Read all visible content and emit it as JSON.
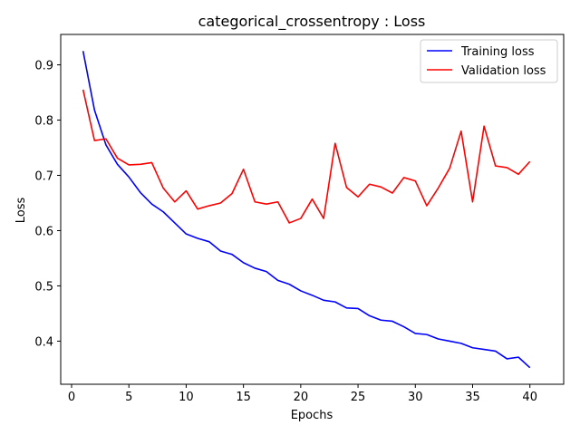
{
  "chart_data": {
    "type": "line",
    "title": "categorical_crossentropy : Loss",
    "xlabel": "Epochs",
    "ylabel": "Loss",
    "xlim": [
      -0.95,
      42.95
    ],
    "ylim": [
      0.322,
      0.955
    ],
    "xticks": [
      0,
      5,
      10,
      15,
      20,
      25,
      30,
      35,
      40
    ],
    "yticks": [
      0.4,
      0.5,
      0.6,
      0.7,
      0.8,
      0.9
    ],
    "xtick_labels": [
      "0",
      "5",
      "10",
      "15",
      "20",
      "25",
      "30",
      "35",
      "40"
    ],
    "ytick_labels": [
      "0.4",
      "0.5",
      "0.6",
      "0.7",
      "0.8",
      "0.9"
    ],
    "legend_position": "top-right",
    "x": [
      1,
      2,
      3,
      4,
      5,
      6,
      7,
      8,
      9,
      10,
      11,
      12,
      13,
      14,
      15,
      16,
      17,
      18,
      19,
      20,
      21,
      22,
      23,
      24,
      25,
      26,
      27,
      28,
      29,
      30,
      31,
      32,
      33,
      34,
      35,
      36,
      37,
      38,
      39,
      40
    ],
    "series": [
      {
        "name": "Training loss",
        "color": "#0000ff",
        "values": [
          0.925,
          0.818,
          0.755,
          0.72,
          0.697,
          0.669,
          0.648,
          0.634,
          0.614,
          0.594,
          0.586,
          0.58,
          0.563,
          0.557,
          0.542,
          0.532,
          0.526,
          0.51,
          0.503,
          0.491,
          0.483,
          0.474,
          0.471,
          0.46,
          0.459,
          0.446,
          0.438,
          0.436,
          0.426,
          0.414,
          0.412,
          0.404,
          0.4,
          0.396,
          0.388,
          0.385,
          0.382,
          0.368,
          0.371,
          0.352
        ]
      },
      {
        "name": "Validation loss",
        "color": "#ff0000",
        "values": [
          0.855,
          0.763,
          0.766,
          0.731,
          0.719,
          0.72,
          0.723,
          0.677,
          0.652,
          0.672,
          0.639,
          0.645,
          0.65,
          0.667,
          0.711,
          0.652,
          0.648,
          0.652,
          0.614,
          0.622,
          0.657,
          0.622,
          0.758,
          0.678,
          0.661,
          0.684,
          0.679,
          0.668,
          0.696,
          0.69,
          0.645,
          0.677,
          0.713,
          0.78,
          0.652,
          0.789,
          0.717,
          0.714,
          0.702,
          0.725
        ]
      }
    ]
  }
}
